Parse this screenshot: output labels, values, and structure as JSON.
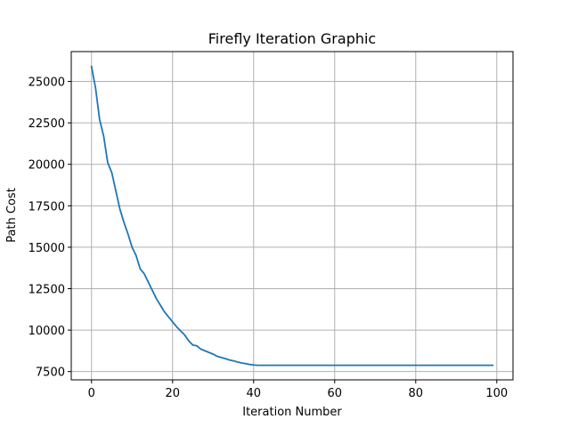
{
  "chart_data": {
    "type": "line",
    "title": "Firefly Iteration Graphic",
    "xlabel": "Iteration Number",
    "ylabel": "Path Cost",
    "xlim": [
      -5,
      104
    ],
    "ylim": [
      7000,
      26800
    ],
    "xticks": [
      0,
      20,
      40,
      60,
      80,
      100
    ],
    "yticks": [
      7500,
      10000,
      12500,
      15000,
      17500,
      20000,
      22500,
      25000
    ],
    "grid": true,
    "line_color": "#1f77b4",
    "series": [
      {
        "x": [
          0,
          1,
          2,
          3,
          4,
          5,
          6,
          7,
          8,
          9,
          10,
          11,
          12,
          13,
          14,
          15,
          16,
          17,
          18,
          19,
          20,
          21,
          22,
          23,
          24,
          25,
          26,
          27,
          28,
          29,
          30,
          31,
          32,
          33,
          34,
          35,
          36,
          37,
          38,
          39,
          40,
          41,
          42,
          43,
          44,
          45,
          46,
          47,
          48,
          49,
          50,
          51,
          52,
          53,
          54,
          55,
          56,
          57,
          58,
          59,
          60,
          61,
          62,
          63,
          64,
          65,
          66,
          67,
          68,
          69,
          70,
          71,
          72,
          73,
          74,
          75,
          76,
          77,
          78,
          79,
          80,
          81,
          82,
          83,
          84,
          85,
          86,
          87,
          88,
          89,
          90,
          91,
          92,
          93,
          94,
          95,
          96,
          97,
          98,
          99
        ],
        "values": [
          25900,
          24600,
          22700,
          21700,
          20100,
          19500,
          18400,
          17300,
          16500,
          15800,
          15000,
          14500,
          13700,
          13400,
          12900,
          12400,
          11900,
          11500,
          11100,
          10800,
          10500,
          10200,
          9950,
          9700,
          9350,
          9100,
          9050,
          8850,
          8750,
          8650,
          8550,
          8420,
          8350,
          8280,
          8200,
          8150,
          8080,
          8020,
          7980,
          7930,
          7900,
          7880,
          7880,
          7880,
          7880,
          7880,
          7880,
          7880,
          7880,
          7880,
          7880,
          7880,
          7880,
          7880,
          7880,
          7880,
          7880,
          7880,
          7880,
          7880,
          7880,
          7880,
          7880,
          7880,
          7880,
          7880,
          7880,
          7880,
          7880,
          7880,
          7880,
          7880,
          7880,
          7880,
          7880,
          7880,
          7880,
          7880,
          7880,
          7880,
          7880,
          7880,
          7880,
          7880,
          7880,
          7880,
          7880,
          7880,
          7880,
          7880,
          7880,
          7880,
          7880,
          7880,
          7880,
          7880,
          7880,
          7880,
          7880,
          7880
        ]
      }
    ]
  }
}
